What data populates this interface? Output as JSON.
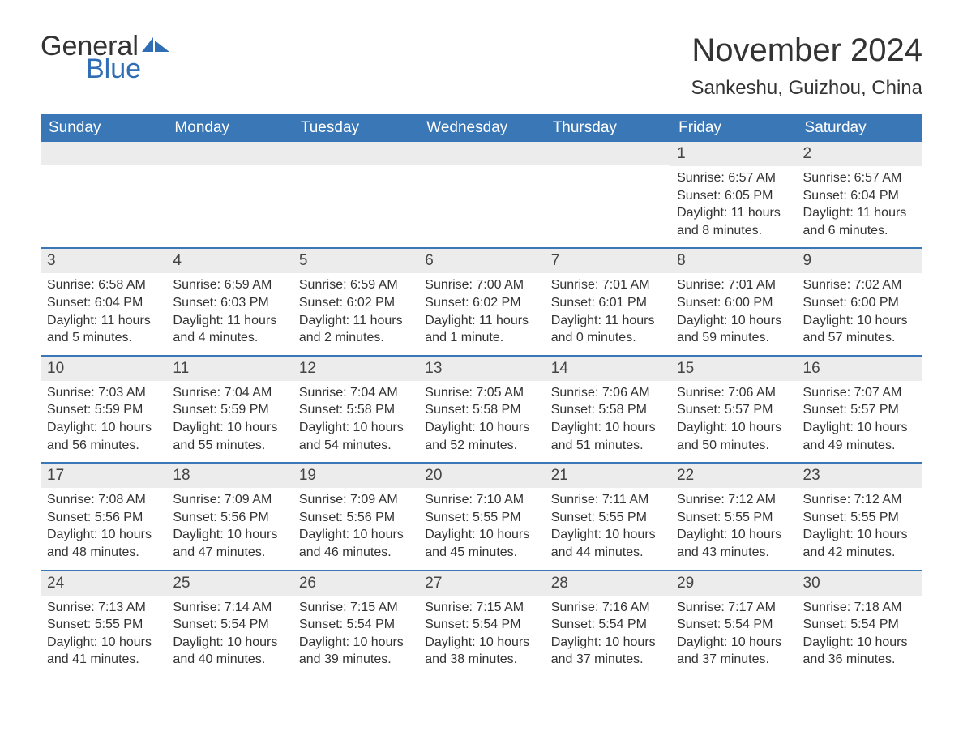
{
  "brand": {
    "part1": "General",
    "part2": "Blue",
    "icon_color": "#2f6eb5"
  },
  "title": "November 2024",
  "location": "Sankeshu, Guizhou, China",
  "colors": {
    "header_bg": "#3a77b7",
    "header_text": "#ffffff",
    "daynum_bg": "#ececec",
    "text": "#333333",
    "rule": "#3a77b7"
  },
  "weekdays": [
    "Sunday",
    "Monday",
    "Tuesday",
    "Wednesday",
    "Thursday",
    "Friday",
    "Saturday"
  ],
  "weeks": [
    [
      null,
      null,
      null,
      null,
      null,
      {
        "n": "1",
        "sunrise": "6:57 AM",
        "sunset": "6:05 PM",
        "daylight": "11 hours and 8 minutes."
      },
      {
        "n": "2",
        "sunrise": "6:57 AM",
        "sunset": "6:04 PM",
        "daylight": "11 hours and 6 minutes."
      }
    ],
    [
      {
        "n": "3",
        "sunrise": "6:58 AM",
        "sunset": "6:04 PM",
        "daylight": "11 hours and 5 minutes."
      },
      {
        "n": "4",
        "sunrise": "6:59 AM",
        "sunset": "6:03 PM",
        "daylight": "11 hours and 4 minutes."
      },
      {
        "n": "5",
        "sunrise": "6:59 AM",
        "sunset": "6:02 PM",
        "daylight": "11 hours and 2 minutes."
      },
      {
        "n": "6",
        "sunrise": "7:00 AM",
        "sunset": "6:02 PM",
        "daylight": "11 hours and 1 minute."
      },
      {
        "n": "7",
        "sunrise": "7:01 AM",
        "sunset": "6:01 PM",
        "daylight": "11 hours and 0 minutes."
      },
      {
        "n": "8",
        "sunrise": "7:01 AM",
        "sunset": "6:00 PM",
        "daylight": "10 hours and 59 minutes."
      },
      {
        "n": "9",
        "sunrise": "7:02 AM",
        "sunset": "6:00 PM",
        "daylight": "10 hours and 57 minutes."
      }
    ],
    [
      {
        "n": "10",
        "sunrise": "7:03 AM",
        "sunset": "5:59 PM",
        "daylight": "10 hours and 56 minutes."
      },
      {
        "n": "11",
        "sunrise": "7:04 AM",
        "sunset": "5:59 PM",
        "daylight": "10 hours and 55 minutes."
      },
      {
        "n": "12",
        "sunrise": "7:04 AM",
        "sunset": "5:58 PM",
        "daylight": "10 hours and 54 minutes."
      },
      {
        "n": "13",
        "sunrise": "7:05 AM",
        "sunset": "5:58 PM",
        "daylight": "10 hours and 52 minutes."
      },
      {
        "n": "14",
        "sunrise": "7:06 AM",
        "sunset": "5:58 PM",
        "daylight": "10 hours and 51 minutes."
      },
      {
        "n": "15",
        "sunrise": "7:06 AM",
        "sunset": "5:57 PM",
        "daylight": "10 hours and 50 minutes."
      },
      {
        "n": "16",
        "sunrise": "7:07 AM",
        "sunset": "5:57 PM",
        "daylight": "10 hours and 49 minutes."
      }
    ],
    [
      {
        "n": "17",
        "sunrise": "7:08 AM",
        "sunset": "5:56 PM",
        "daylight": "10 hours and 48 minutes."
      },
      {
        "n": "18",
        "sunrise": "7:09 AM",
        "sunset": "5:56 PM",
        "daylight": "10 hours and 47 minutes."
      },
      {
        "n": "19",
        "sunrise": "7:09 AM",
        "sunset": "5:56 PM",
        "daylight": "10 hours and 46 minutes."
      },
      {
        "n": "20",
        "sunrise": "7:10 AM",
        "sunset": "5:55 PM",
        "daylight": "10 hours and 45 minutes."
      },
      {
        "n": "21",
        "sunrise": "7:11 AM",
        "sunset": "5:55 PM",
        "daylight": "10 hours and 44 minutes."
      },
      {
        "n": "22",
        "sunrise": "7:12 AM",
        "sunset": "5:55 PM",
        "daylight": "10 hours and 43 minutes."
      },
      {
        "n": "23",
        "sunrise": "7:12 AM",
        "sunset": "5:55 PM",
        "daylight": "10 hours and 42 minutes."
      }
    ],
    [
      {
        "n": "24",
        "sunrise": "7:13 AM",
        "sunset": "5:55 PM",
        "daylight": "10 hours and 41 minutes."
      },
      {
        "n": "25",
        "sunrise": "7:14 AM",
        "sunset": "5:54 PM",
        "daylight": "10 hours and 40 minutes."
      },
      {
        "n": "26",
        "sunrise": "7:15 AM",
        "sunset": "5:54 PM",
        "daylight": "10 hours and 39 minutes."
      },
      {
        "n": "27",
        "sunrise": "7:15 AM",
        "sunset": "5:54 PM",
        "daylight": "10 hours and 38 minutes."
      },
      {
        "n": "28",
        "sunrise": "7:16 AM",
        "sunset": "5:54 PM",
        "daylight": "10 hours and 37 minutes."
      },
      {
        "n": "29",
        "sunrise": "7:17 AM",
        "sunset": "5:54 PM",
        "daylight": "10 hours and 37 minutes."
      },
      {
        "n": "30",
        "sunrise": "7:18 AM",
        "sunset": "5:54 PM",
        "daylight": "10 hours and 36 minutes."
      }
    ]
  ],
  "labels": {
    "sunrise": "Sunrise: ",
    "sunset": "Sunset: ",
    "daylight": "Daylight: "
  }
}
